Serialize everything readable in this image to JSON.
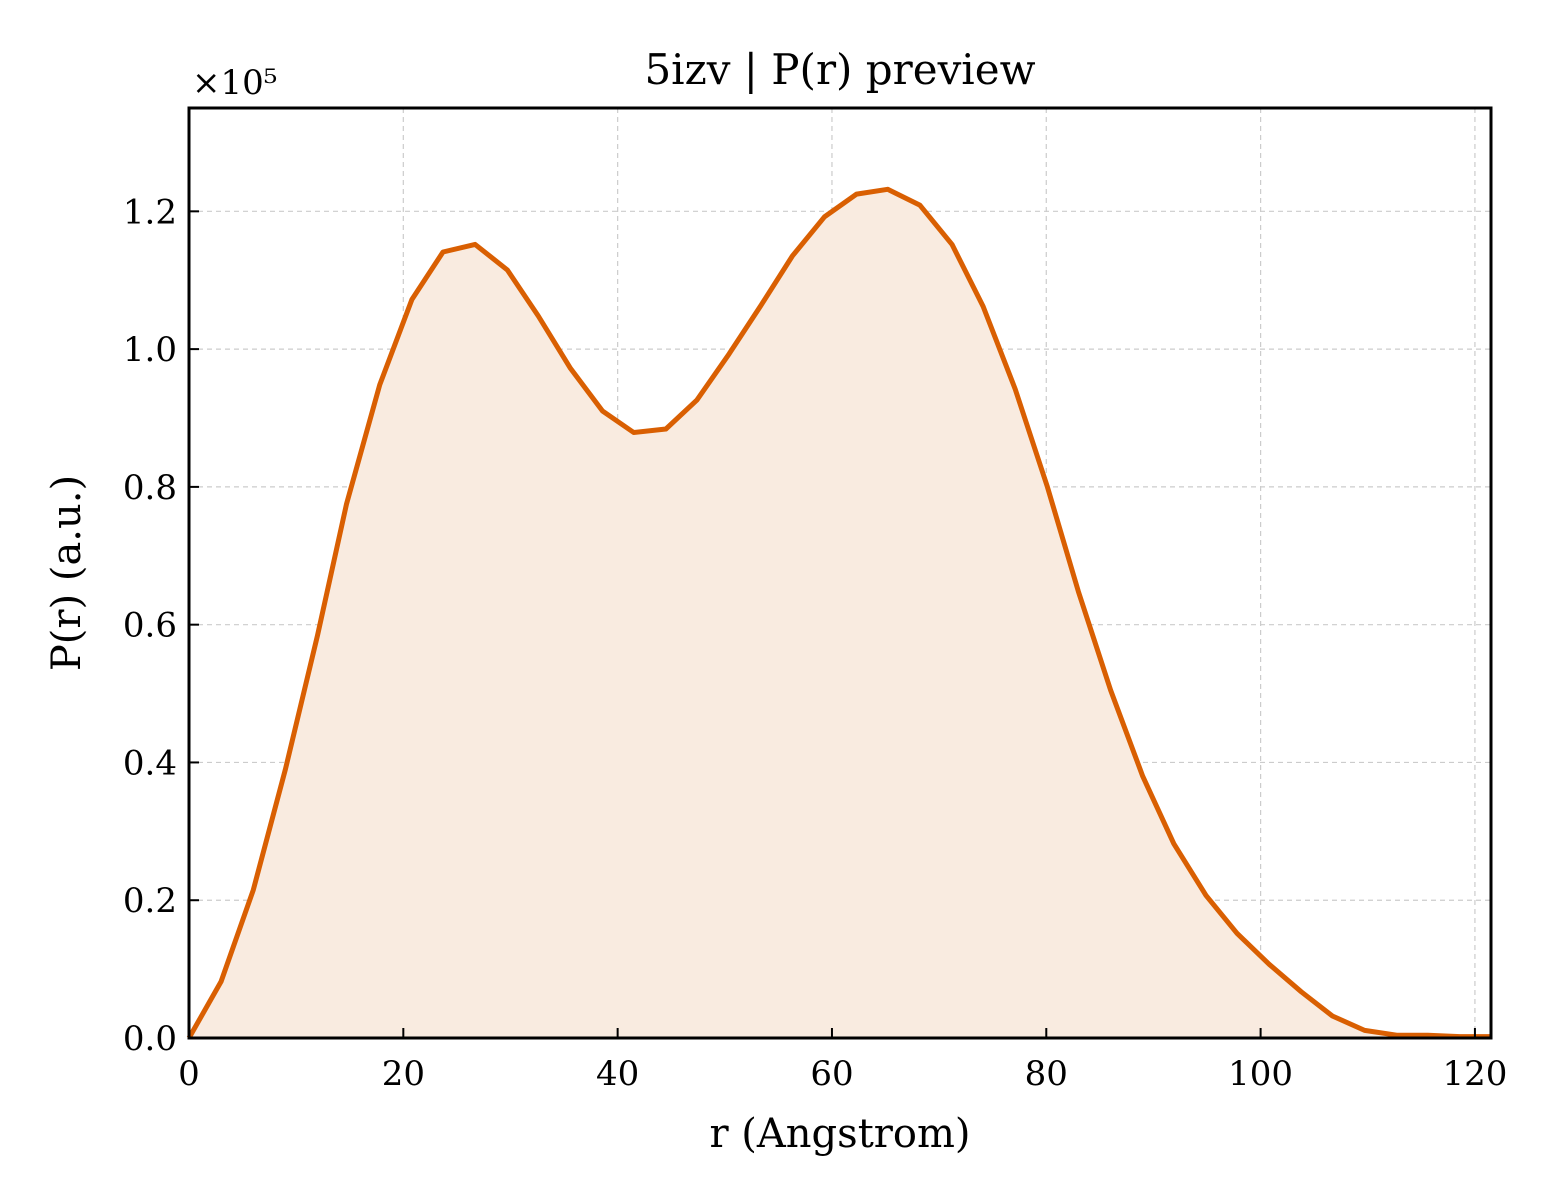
{
  "chart_data": {
    "type": "area",
    "title": "5izv | P(r) preview",
    "xlabel": "r (Angstrom)",
    "ylabel": "P(r) (a.u.)",
    "y_offset_label": "×10⁵",
    "y_scale": 100000,
    "xlim": [
      0,
      121.5
    ],
    "ylim": [
      0,
      1.35
    ],
    "x_ticks": [
      0,
      20,
      40,
      60,
      80,
      100,
      120
    ],
    "x_tick_labels": [
      "0",
      "20",
      "40",
      "60",
      "80",
      "100",
      "120"
    ],
    "y_ticks": [
      0,
      0.2,
      0.4,
      0.6,
      0.8,
      1.0,
      1.2
    ],
    "y_tick_labels": [
      "0.0",
      "0.2",
      "0.4",
      "0.6",
      "0.8",
      "1.0",
      "1.2"
    ],
    "grid": true,
    "line_color": "#d95f02",
    "fill_color": "#f9ebe0",
    "series": [
      {
        "x": [
          0,
          3,
          6,
          9,
          12,
          14.7,
          17.8,
          20.8,
          23.7,
          26.7,
          29.7,
          32.6,
          35.6,
          38.6,
          41.5,
          44.5,
          47.4,
          50.4,
          53.4,
          56.3,
          59.3,
          62.3,
          65.2,
          68.2,
          71.2,
          74.1,
          77.1,
          80.1,
          83,
          86,
          89,
          91.9,
          94.9,
          97.8,
          100.8,
          103.8,
          106.7,
          109.7,
          112.7,
          115.6,
          118.6,
          121.5
        ],
        "y": [
          0,
          0.082,
          0.215,
          0.39,
          0.585,
          0.775,
          0.948,
          1.072,
          1.141,
          1.152,
          1.115,
          1.048,
          0.972,
          0.91,
          0.879,
          0.884,
          0.926,
          0.993,
          1.064,
          1.135,
          1.192,
          1.225,
          1.232,
          1.209,
          1.152,
          1.062,
          0.942,
          0.8,
          0.648,
          0.505,
          0.38,
          0.282,
          0.207,
          0.152,
          0.107,
          0.067,
          0.032,
          0.011,
          0.004,
          0.004,
          0.002,
          0.002
        ]
      }
    ]
  }
}
